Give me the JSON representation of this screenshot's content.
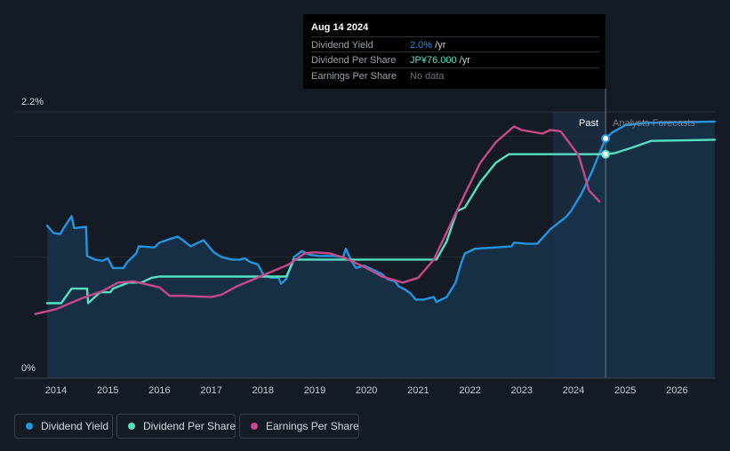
{
  "tooltip": {
    "date": "Aug 14 2024",
    "rows": [
      {
        "label": "Dividend Yield",
        "value": "2.0%",
        "unit": " /yr"
      },
      {
        "label": "Dividend Per Share",
        "value": "JP¥76.000",
        "unit": " /yr"
      },
      {
        "label": "Earnings Per Share",
        "value": "No data",
        "unit": ""
      }
    ]
  },
  "markers": {
    "past": "Past",
    "forecast": "Analysts Forecasts"
  },
  "legend": [
    {
      "label": "Dividend Yield",
      "color": "#2394df"
    },
    {
      "label": "Dividend Per Share",
      "color": "#56e0c2"
    },
    {
      "label": "Earnings Per Share",
      "color": "#c8498a"
    }
  ],
  "chart_data": {
    "type": "line",
    "xlim": [
      2013.64,
      2026.73
    ],
    "ylim": [
      0,
      2.2
    ],
    "y_tick_labels": [
      {
        "value": 2.2,
        "label": "2.2%"
      },
      {
        "value": 0,
        "label": "0%"
      }
    ],
    "x_ticks": [
      2014,
      2015,
      2016,
      2017,
      2018,
      2019,
      2020,
      2021,
      2022,
      2023,
      2024,
      2025,
      2026
    ],
    "x_tick_labels": [
      "2014",
      "2015",
      "2016",
      "2017",
      "2018",
      "2019",
      "2020",
      "2021",
      "2022",
      "2023",
      "2024",
      "2025",
      "2026"
    ],
    "gridlines": [
      2.0,
      1.0
    ],
    "past_until": 2024.62,
    "forecast_band_start": 2023.6,
    "highlight_date": 2024.62,
    "series": [
      {
        "name": "Dividend Yield",
        "color": "#2394df",
        "fill": true,
        "points": [
          [
            2013.83,
            1.26
          ],
          [
            2013.95,
            1.2
          ],
          [
            2014.08,
            1.19
          ],
          [
            2014.15,
            1.24
          ],
          [
            2014.3,
            1.34
          ],
          [
            2014.35,
            1.24
          ],
          [
            2014.58,
            1.25
          ],
          [
            2014.6,
            1.01
          ],
          [
            2014.75,
            0.98
          ],
          [
            2014.9,
            0.97
          ],
          [
            2015.0,
            0.99
          ],
          [
            2015.1,
            0.91
          ],
          [
            2015.3,
            0.91
          ],
          [
            2015.38,
            0.96
          ],
          [
            2015.55,
            1.03
          ],
          [
            2015.6,
            1.09
          ],
          [
            2015.9,
            1.08
          ],
          [
            2016.0,
            1.12
          ],
          [
            2016.2,
            1.15
          ],
          [
            2016.35,
            1.17
          ],
          [
            2016.45,
            1.14
          ],
          [
            2016.6,
            1.09
          ],
          [
            2016.75,
            1.12
          ],
          [
            2016.85,
            1.14
          ],
          [
            2016.95,
            1.09
          ],
          [
            2017.05,
            1.04
          ],
          [
            2017.2,
            1.0
          ],
          [
            2017.4,
            0.98
          ],
          [
            2017.55,
            0.98
          ],
          [
            2017.65,
            0.99
          ],
          [
            2017.75,
            0.96
          ],
          [
            2017.9,
            0.94
          ],
          [
            2018.0,
            0.86
          ],
          [
            2018.15,
            0.83
          ],
          [
            2018.3,
            0.83
          ],
          [
            2018.35,
            0.78
          ],
          [
            2018.45,
            0.82
          ],
          [
            2018.6,
            1.0
          ],
          [
            2018.75,
            1.05
          ],
          [
            2018.9,
            1.02
          ],
          [
            2019.1,
            1.01
          ],
          [
            2019.35,
            1.01
          ],
          [
            2019.55,
            1.0
          ],
          [
            2019.6,
            1.07
          ],
          [
            2019.72,
            0.96
          ],
          [
            2019.8,
            0.91
          ],
          [
            2019.95,
            0.93
          ],
          [
            2020.05,
            0.91
          ],
          [
            2020.2,
            0.88
          ],
          [
            2020.3,
            0.86
          ],
          [
            2020.4,
            0.82
          ],
          [
            2020.55,
            0.8
          ],
          [
            2020.62,
            0.76
          ],
          [
            2020.75,
            0.73
          ],
          [
            2020.85,
            0.7
          ],
          [
            2020.95,
            0.65
          ],
          [
            2021.1,
            0.65
          ],
          [
            2021.2,
            0.66
          ],
          [
            2021.3,
            0.67
          ],
          [
            2021.35,
            0.63
          ],
          [
            2021.55,
            0.67
          ],
          [
            2021.72,
            0.79
          ],
          [
            2021.83,
            0.95
          ],
          [
            2021.9,
            1.03
          ],
          [
            2022.1,
            1.07
          ],
          [
            2022.5,
            1.08
          ],
          [
            2022.8,
            1.09
          ],
          [
            2022.85,
            1.12
          ],
          [
            2023.1,
            1.11
          ],
          [
            2023.3,
            1.11
          ],
          [
            2023.55,
            1.23
          ],
          [
            2023.85,
            1.33
          ],
          [
            2023.95,
            1.38
          ],
          [
            2024.15,
            1.52
          ],
          [
            2024.35,
            1.7
          ],
          [
            2024.62,
            1.98
          ],
          [
            2024.75,
            2.03
          ],
          [
            2025.0,
            2.09
          ],
          [
            2025.4,
            2.11
          ],
          [
            2026.73,
            2.12
          ]
        ]
      },
      {
        "name": "Dividend Per Share",
        "color": "#56e0c2",
        "fill": false,
        "points": [
          [
            2013.83,
            0.62
          ],
          [
            2014.1,
            0.62
          ],
          [
            2014.3,
            0.74
          ],
          [
            2014.6,
            0.74
          ],
          [
            2014.62,
            0.62
          ],
          [
            2014.85,
            0.71
          ],
          [
            2015.05,
            0.71
          ],
          [
            2015.1,
            0.74
          ],
          [
            2015.4,
            0.79
          ],
          [
            2015.65,
            0.79
          ],
          [
            2015.85,
            0.83
          ],
          [
            2016.0,
            0.84
          ],
          [
            2018.0,
            0.84
          ],
          [
            2018.45,
            0.84
          ],
          [
            2018.6,
            0.98
          ],
          [
            2018.7,
            0.98
          ],
          [
            2021.35,
            0.98
          ],
          [
            2021.55,
            1.13
          ],
          [
            2021.75,
            1.38
          ],
          [
            2021.9,
            1.41
          ],
          [
            2022.2,
            1.62
          ],
          [
            2022.5,
            1.78
          ],
          [
            2022.75,
            1.85
          ],
          [
            2024.62,
            1.85
          ],
          [
            2024.8,
            1.86
          ],
          [
            2025.1,
            1.9
          ],
          [
            2025.5,
            1.96
          ],
          [
            2026.73,
            1.97
          ]
        ]
      },
      {
        "name": "Earnings Per Share",
        "color": "#c8498a",
        "fill": false,
        "points": [
          [
            2013.6,
            0.53
          ],
          [
            2014.0,
            0.57
          ],
          [
            2014.5,
            0.66
          ],
          [
            2014.9,
            0.72
          ],
          [
            2015.2,
            0.79
          ],
          [
            2015.5,
            0.8
          ],
          [
            2016.0,
            0.75
          ],
          [
            2016.2,
            0.68
          ],
          [
            2016.5,
            0.68
          ],
          [
            2017.0,
            0.67
          ],
          [
            2017.2,
            0.69
          ],
          [
            2017.5,
            0.76
          ],
          [
            2018.0,
            0.85
          ],
          [
            2018.5,
            0.94
          ],
          [
            2018.8,
            1.03
          ],
          [
            2019.0,
            1.04
          ],
          [
            2019.3,
            1.03
          ],
          [
            2019.6,
            0.99
          ],
          [
            2020.0,
            0.91
          ],
          [
            2020.3,
            0.84
          ],
          [
            2020.7,
            0.79
          ],
          [
            2021.0,
            0.83
          ],
          [
            2021.3,
            0.98
          ],
          [
            2021.6,
            1.25
          ],
          [
            2021.9,
            1.52
          ],
          [
            2022.2,
            1.78
          ],
          [
            2022.5,
            1.95
          ],
          [
            2022.85,
            2.08
          ],
          [
            2023.0,
            2.05
          ],
          [
            2023.4,
            2.02
          ],
          [
            2023.55,
            2.05
          ],
          [
            2023.75,
            2.04
          ],
          [
            2024.1,
            1.84
          ],
          [
            2024.3,
            1.55
          ],
          [
            2024.5,
            1.46
          ]
        ]
      }
    ]
  }
}
